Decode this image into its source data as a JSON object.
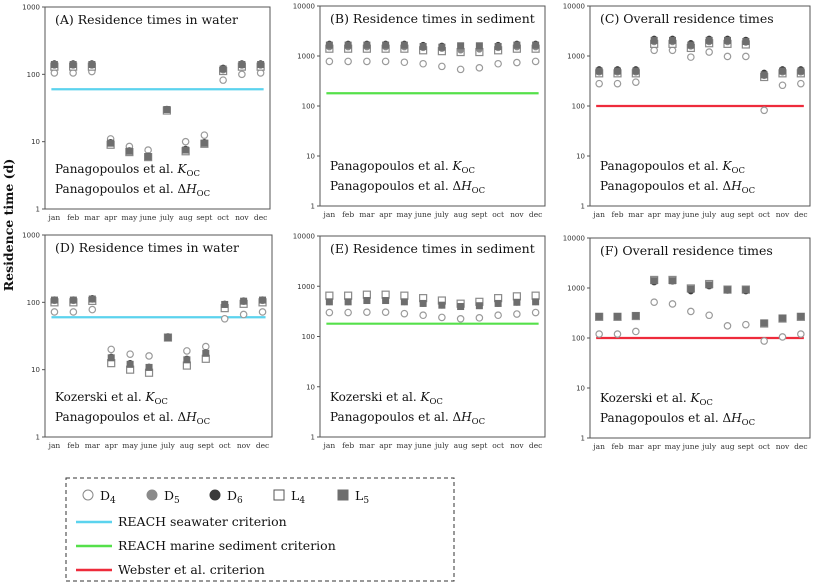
{
  "chart_data": {
    "type": "scatter",
    "ylabel": "Residence time (d)",
    "y_scale": "log",
    "categories": [
      "jan",
      "feb",
      "mar",
      "apr",
      "may",
      "june",
      "july",
      "aug",
      "sept",
      "oct",
      "nov",
      "dec"
    ],
    "series_styles": {
      "D4": {
        "marker": "open-circle",
        "color": "#9a9a9a"
      },
      "D5": {
        "marker": "filled-circle",
        "color": "#8a8a8a"
      },
      "D6": {
        "marker": "filled-circle",
        "color": "#3a3a3a"
      },
      "L4": {
        "marker": "open-square",
        "color": "#8a8a8a"
      },
      "L5": {
        "marker": "filled-square",
        "color": "#6e6e6e"
      }
    },
    "legend": {
      "series": [
        {
          "key": "D4",
          "base": "D",
          "sub": "4"
        },
        {
          "key": "D5",
          "base": "D",
          "sub": "5"
        },
        {
          "key": "D6",
          "base": "D",
          "sub": "6"
        },
        {
          "key": "L4",
          "base": "L",
          "sub": "4"
        },
        {
          "key": "L5",
          "base": "L",
          "sub": "5"
        }
      ],
      "lines": [
        {
          "label": "REACH  seawater criterion",
          "color": "#5bd3ee"
        },
        {
          "label": "REACH marine sediment criterion",
          "color": "#55e04a"
        },
        {
          "label": "Webster et al. criterion",
          "color": "#ee2b3b"
        }
      ],
      "placement": "bottom"
    },
    "panels": [
      {
        "title": "(A) Residence times in water",
        "ylim": [
          1,
          1000
        ],
        "yticks": [
          "1",
          "10",
          "100",
          "1000"
        ],
        "criterion": 60,
        "criterion_color": "#5bd3ee",
        "notes": [
          {
            "pre": "Panagopoulos et al. ",
            "sym": "K",
            "sub": "OC"
          },
          {
            "pre": "Panagopoulos et al. Δ",
            "sym": "H",
            "sub": "OC"
          }
        ],
        "series": {
          "D4": [
            105,
            105,
            110,
            11,
            8.5,
            7.5,
            30,
            10,
            12.5,
            82,
            100,
            105
          ],
          "D5": [
            135,
            135,
            135,
            9.5,
            7.2,
            6.1,
            30,
            7.6,
            9.6,
            115,
            135,
            135
          ],
          "D6": [
            145,
            145,
            145,
            9.8,
            7.4,
            6.2,
            30.5,
            7.8,
            9.8,
            125,
            145,
            145
          ],
          "L4": [
            130,
            130,
            130,
            9,
            7,
            5.9,
            29,
            7.2,
            9.3,
            112,
            130,
            130
          ],
          "L5": [
            140,
            140,
            140,
            9.5,
            7.2,
            6,
            30,
            7.5,
            9.5,
            120,
            140,
            140
          ]
        }
      },
      {
        "title": "(B) Residence times in sediment",
        "ylim": [
          1,
          10000
        ],
        "yticks": [
          "1",
          "10",
          "100",
          "1000",
          "10000"
        ],
        "criterion": 180,
        "criterion_color": "#55e04a",
        "notes": [
          {
            "pre": "Panagopoulos et al. ",
            "sym": "K",
            "sub": "OC"
          },
          {
            "pre": "Panagopoulos et al. Δ",
            "sym": "H",
            "sub": "OC"
          }
        ],
        "series": {
          "D4": [
            780,
            780,
            780,
            780,
            750,
            700,
            620,
            540,
            580,
            700,
            740,
            780
          ],
          "D5": [
            1500,
            1500,
            1500,
            1500,
            1500,
            1450,
            1400,
            1300,
            1350,
            1450,
            1500,
            1500
          ],
          "D6": [
            1750,
            1750,
            1750,
            1750,
            1750,
            1650,
            1600,
            1600,
            1600,
            1650,
            1750,
            1750
          ],
          "L4": [
            1400,
            1400,
            1400,
            1400,
            1400,
            1300,
            1250,
            1200,
            1200,
            1300,
            1400,
            1400
          ],
          "L5": [
            1650,
            1650,
            1650,
            1650,
            1650,
            1550,
            1500,
            1600,
            1600,
            1550,
            1650,
            1650
          ]
        }
      },
      {
        "title": "(C) Overall residence times",
        "ylim": [
          1,
          10000
        ],
        "yticks": [
          "1",
          "10",
          "100",
          "1000",
          "10000"
        ],
        "criterion": 100,
        "criterion_color": "#ee2b3b",
        "notes": [
          {
            "pre": "Panagopoulos et al. ",
            "sym": "K",
            "sub": "OC"
          },
          {
            "pre": "Panagopoulos et al. Δ",
            "sym": "H",
            "sub": "OC"
          }
        ],
        "series": {
          "D4": [
            280,
            280,
            300,
            1300,
            1300,
            950,
            1200,
            980,
            980,
            82,
            260,
            280
          ],
          "D5": [
            470,
            470,
            470,
            1900,
            1900,
            1550,
            1900,
            1900,
            1850,
            400,
            470,
            470
          ],
          "D6": [
            540,
            540,
            540,
            2200,
            2200,
            1800,
            2200,
            2200,
            2100,
            460,
            540,
            540
          ],
          "L4": [
            450,
            450,
            450,
            1750,
            1750,
            1450,
            1800,
            1750,
            1700,
            380,
            450,
            450
          ],
          "L5": [
            500,
            500,
            500,
            2050,
            2050,
            1650,
            2050,
            2050,
            1950,
            420,
            500,
            500
          ]
        }
      },
      {
        "title": "(D) Residence times in water",
        "ylim": [
          1,
          1000
        ],
        "yticks": [
          "1",
          "10",
          "100",
          "1000"
        ],
        "criterion": 60,
        "criterion_color": "#5bd3ee",
        "notes": [
          {
            "pre": "Kozerski et al. ",
            "sym": "K",
            "sub": "OC"
          },
          {
            "pre": "Panagopoulos et al. Δ",
            "sym": "H",
            "sub": "OC"
          }
        ],
        "series": {
          "D4": [
            72,
            72,
            78,
            20,
            17,
            16,
            30,
            19,
            22,
            57,
            66,
            72
          ],
          "D5": [
            105,
            105,
            110,
            15,
            12.3,
            10.8,
            30,
            14.3,
            17.5,
            92,
            102,
            105
          ],
          "D6": [
            110,
            110,
            115,
            15.5,
            12.5,
            11,
            31,
            14.5,
            18,
            95,
            106,
            110
          ],
          "L4": [
            100,
            100,
            105,
            12.5,
            10,
            9,
            30,
            11.5,
            14.5,
            82,
            95,
            100
          ],
          "L5": [
            108,
            108,
            112,
            15,
            12,
            10.8,
            30,
            14,
            17.5,
            93,
            104,
            108
          ]
        }
      },
      {
        "title": "(E) Residence times in sediment",
        "ylim": [
          1,
          10000
        ],
        "yticks": [
          "1",
          "10",
          "100",
          "1000",
          "10000"
        ],
        "criterion": 180,
        "criterion_color": "#55e04a",
        "notes": [
          {
            "pre": "Kozerski et al. ",
            "sym": "K",
            "sub": "OC"
          },
          {
            "pre": "Panagopoulos et al. Δ",
            "sym": "H",
            "sub": "OC"
          }
        ],
        "series": {
          "D4": [
            300,
            300,
            305,
            305,
            285,
            265,
            240,
            225,
            235,
            265,
            280,
            300
          ],
          "D5": [
            485,
            485,
            515,
            515,
            485,
            450,
            415,
            390,
            405,
            450,
            475,
            485
          ],
          "D6": [
            490,
            490,
            520,
            520,
            490,
            455,
            420,
            395,
            410,
            455,
            480,
            490
          ],
          "L4": [
            650,
            650,
            680,
            680,
            650,
            580,
            520,
            450,
            490,
            580,
            630,
            650
          ],
          "L5": [
            490,
            490,
            520,
            520,
            490,
            455,
            420,
            395,
            410,
            455,
            480,
            490
          ]
        }
      },
      {
        "title": "(F) Overall residence times",
        "ylim": [
          1,
          10000
        ],
        "yticks": [
          "1",
          "10",
          "100",
          "1000",
          "10000"
        ],
        "criterion": 100,
        "criterion_color": "#ee2b3b",
        "notes": [
          {
            "pre": "Kozerski et al. ",
            "sym": "K",
            "sub": "OC"
          },
          {
            "pre": "Panagopoulos et al. Δ",
            "sym": "H",
            "sub": "OC"
          }
        ],
        "series": {
          "D4": [
            120,
            120,
            135,
            520,
            480,
            340,
            285,
            175,
            185,
            87,
            105,
            120
          ],
          "D5": [
            265,
            265,
            275,
            1300,
            1350,
            860,
            1080,
            890,
            860,
            200,
            250,
            270
          ],
          "D6": [
            270,
            270,
            280,
            1320,
            1370,
            870,
            1100,
            900,
            870,
            200,
            250,
            270
          ],
          "L4": [
            265,
            265,
            275,
            1450,
            1450,
            980,
            1200,
            930,
            930,
            195,
            245,
            265
          ],
          "L5": [
            270,
            270,
            280,
            1400,
            1400,
            950,
            1150,
            920,
            920,
            200,
            250,
            270
          ]
        }
      }
    ]
  }
}
